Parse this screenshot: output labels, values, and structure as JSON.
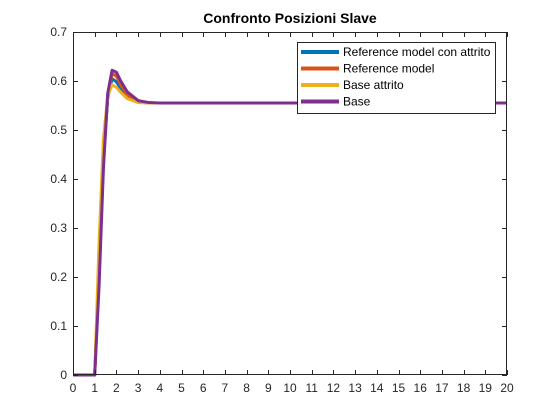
{
  "chart_data": {
    "type": "line",
    "title": "Confronto Posizioni Slave",
    "xlabel": "",
    "ylabel": "",
    "xlim": [
      0,
      20
    ],
    "ylim": [
      0,
      0.7
    ],
    "xticks": [
      0,
      1,
      2,
      3,
      4,
      5,
      6,
      7,
      8,
      9,
      10,
      11,
      12,
      13,
      14,
      15,
      16,
      17,
      18,
      19,
      20
    ],
    "yticks": [
      0,
      0.1,
      0.2,
      0.3,
      0.4,
      0.5,
      0.6,
      0.7
    ],
    "grid": false,
    "legend_position": "top-right",
    "series": [
      {
        "name": "Reference model con attrito",
        "color": "#0072BD",
        "points": [
          [
            0,
            0
          ],
          [
            1,
            0
          ],
          [
            1.2,
            0.22
          ],
          [
            1.4,
            0.44
          ],
          [
            1.6,
            0.565
          ],
          [
            1.8,
            0.605
          ],
          [
            2.0,
            0.598
          ],
          [
            2.2,
            0.585
          ],
          [
            2.5,
            0.567
          ],
          [
            3.0,
            0.557
          ],
          [
            3.5,
            0.555
          ],
          [
            4,
            0.555
          ],
          [
            20,
            0.555
          ]
        ]
      },
      {
        "name": "Reference model",
        "color": "#D95319",
        "points": [
          [
            0,
            0
          ],
          [
            1,
            0
          ],
          [
            1.2,
            0.2
          ],
          [
            1.4,
            0.43
          ],
          [
            1.6,
            0.57
          ],
          [
            1.8,
            0.615
          ],
          [
            2.0,
            0.61
          ],
          [
            2.2,
            0.592
          ],
          [
            2.5,
            0.572
          ],
          [
            3.0,
            0.558
          ],
          [
            3.5,
            0.555
          ],
          [
            4,
            0.555
          ],
          [
            20,
            0.555
          ]
        ]
      },
      {
        "name": "Base attrito",
        "color": "#EDB120",
        "points": [
          [
            0,
            0
          ],
          [
            1,
            0
          ],
          [
            1.2,
            0.27
          ],
          [
            1.4,
            0.48
          ],
          [
            1.6,
            0.57
          ],
          [
            1.8,
            0.592
          ],
          [
            2.0,
            0.587
          ],
          [
            2.2,
            0.577
          ],
          [
            2.5,
            0.564
          ],
          [
            3.0,
            0.556
          ],
          [
            3.5,
            0.555
          ],
          [
            4,
            0.555
          ],
          [
            20,
            0.555
          ]
        ]
      },
      {
        "name": "Base",
        "color": "#7E2F8E",
        "points": [
          [
            0,
            0
          ],
          [
            1,
            0
          ],
          [
            1.2,
            0.18
          ],
          [
            1.4,
            0.42
          ],
          [
            1.6,
            0.575
          ],
          [
            1.8,
            0.622
          ],
          [
            2.0,
            0.618
          ],
          [
            2.2,
            0.6
          ],
          [
            2.5,
            0.578
          ],
          [
            3.0,
            0.56
          ],
          [
            3.5,
            0.556
          ],
          [
            4,
            0.555
          ],
          [
            20,
            0.555
          ]
        ]
      }
    ]
  }
}
